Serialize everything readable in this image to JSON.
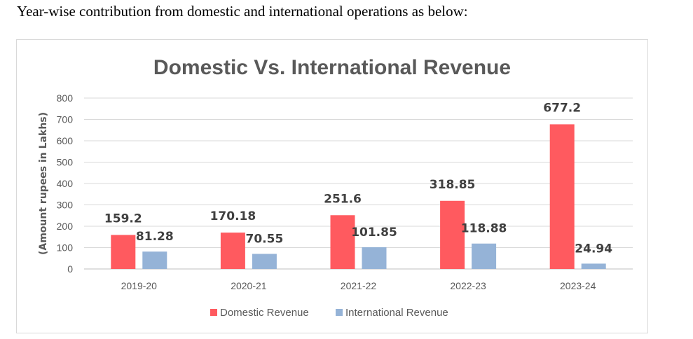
{
  "intro_text": "Year-wise contribution from domestic and international operations as below:",
  "chart_data": {
    "type": "bar",
    "title": "Domestic Vs. International Revenue",
    "xlabel": "",
    "ylabel": "(Amount rupees in Lakhs)",
    "ylim": [
      0,
      800
    ],
    "yticks": [
      0,
      100,
      200,
      300,
      400,
      500,
      600,
      700,
      800
    ],
    "grid": true,
    "legend_position": "bottom",
    "categories": [
      "2019-20",
      "2020-21",
      "2021-22",
      "2022-23",
      "2023-24"
    ],
    "series": [
      {
        "name": "Domestic Revenue",
        "color": "#ff5a5f",
        "values": [
          159.2,
          170.18,
          251.6,
          318.85,
          677.2
        ],
        "labels": [
          "159.2",
          "170.18",
          "251.6",
          "318.85",
          "677.2"
        ]
      },
      {
        "name": "International Revenue",
        "color": "#95b3d7",
        "values": [
          81.28,
          70.55,
          101.85,
          118.88,
          24.94
        ],
        "labels": [
          "81.28",
          "70.55",
          "101.85",
          "118.88",
          "24.94"
        ]
      }
    ]
  }
}
